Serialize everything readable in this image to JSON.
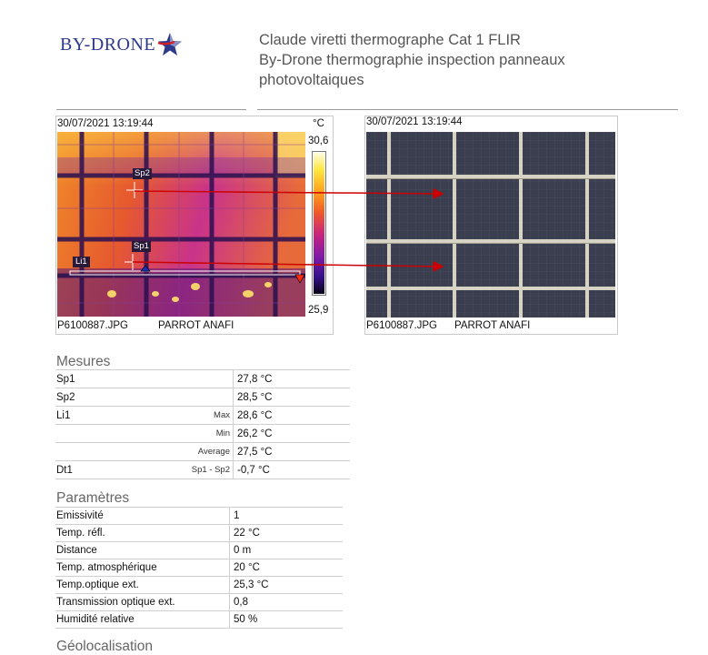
{
  "header": {
    "logo_text": "BY-DRONE",
    "title_lines": [
      "Claude viretti thermographe Cat 1 FLIR",
      "By-Drone thermographie inspection panneaux",
      "photovoltaiques"
    ]
  },
  "ir_image": {
    "timestamp": "30/07/2021 13:19:44",
    "unit": "°C",
    "scale_max": "30,6",
    "scale_min": "25,9",
    "file": "P6100887.JPG",
    "camera": "PARROT ANAFI",
    "markers": {
      "sp2": "Sp2",
      "sp1": "Sp1",
      "li1": "Li1"
    }
  },
  "visual_image": {
    "timestamp": "30/07/2021 13:19:44",
    "file": "P6100887.JPG",
    "camera": "PARROT ANAFI"
  },
  "mesures": {
    "title": "Mesures",
    "rows": [
      {
        "label": "Sp1",
        "sub": "",
        "value": "27,8 °C"
      },
      {
        "label": "Sp2",
        "sub": "",
        "value": "28,5 °C"
      },
      {
        "label": "Li1",
        "sub": "Max",
        "value": "28,6 °C"
      },
      {
        "label": "",
        "sub": "Min",
        "value": "26,2 °C"
      },
      {
        "label": "",
        "sub": "Average",
        "value": "27,5 °C"
      },
      {
        "label": "Dt1",
        "sub": "Sp1 - Sp2",
        "value": "-0,7 °C"
      }
    ]
  },
  "parametres": {
    "title": "Paramètres",
    "rows": [
      {
        "label": "Emissivité",
        "value": "1"
      },
      {
        "label": "Temp. réfl.",
        "value": "22 °C"
      },
      {
        "label": "Distance",
        "value": "0 m"
      },
      {
        "label": "Temp. atmosphérique",
        "value": "20 °C"
      },
      {
        "label": "Temp.optique ext.",
        "value": "25,3 °C"
      },
      {
        "label": "Transmission optique ext.",
        "value": "0,8"
      },
      {
        "label": "Humidité relative",
        "value": "50 %"
      }
    ]
  },
  "geolocalisation": {
    "title": "Géolocalisation"
  },
  "colors": {
    "logo_blue": "#2d3a8c",
    "logo_red": "#d0202a",
    "arrow_red": "#cc0000"
  }
}
